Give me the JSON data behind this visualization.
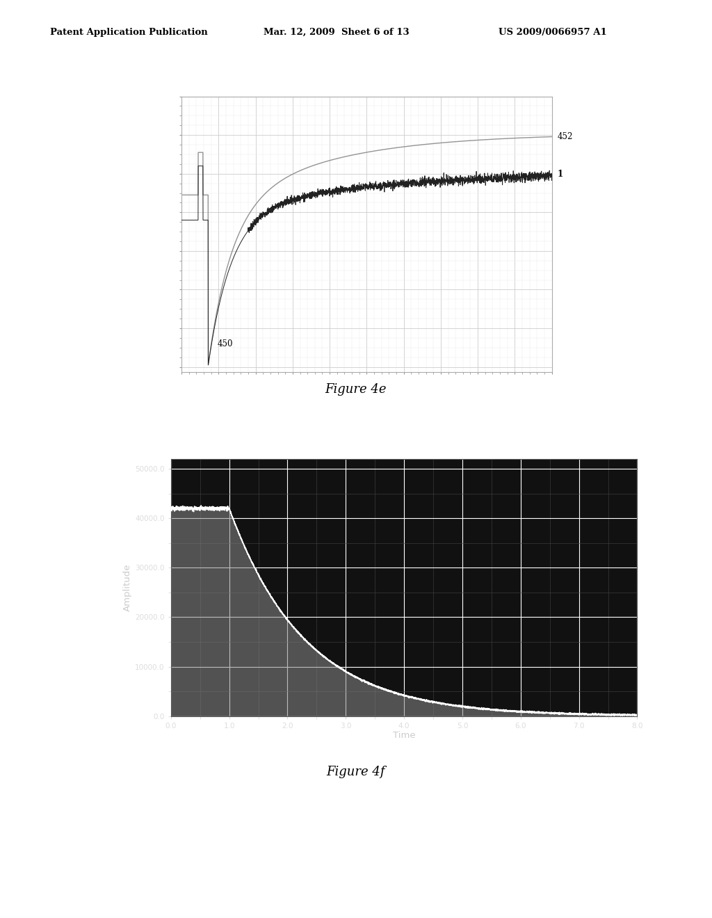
{
  "header_left": "Patent Application Publication",
  "header_mid": "Mar. 12, 2009  Sheet 6 of 13",
  "header_right": "US 2009/0066957 A1",
  "fig4e_caption": "Figure 4e",
  "fig4f_caption": "Figure 4f",
  "fig4f_ylabel": "Amplitude",
  "fig4f_xlabel": "Time",
  "fig4f_ytick_vals": [
    0,
    10000,
    20000,
    30000,
    40000,
    50000
  ],
  "fig4f_ytick_labels": [
    "0.0",
    "10000.0",
    "20000.0",
    "30000.0",
    "40000.0",
    "50000.0"
  ],
  "fig4f_xtick_vals": [
    0,
    1,
    2,
    3,
    4,
    5,
    6,
    7,
    8
  ],
  "fig4f_xtick_labels": [
    "0.0",
    "1.0",
    "2.0",
    "3.0",
    "4.0",
    "5.0",
    "6.0",
    "7.0",
    "8.0"
  ],
  "fig4f_outer_bg": "#aaaaaa",
  "fig4f_plot_bg": "#111111",
  "fig4f_grid_major_color": "#ffffff",
  "fig4f_grid_minor_color": "#555555",
  "fig4f_line_color": "#ffffff",
  "fig4f_fill_color": "#888888",
  "fig4e_bg": "#ffffff",
  "fig4e_grid_major_color": "#cccccc",
  "fig4e_grid_minor_color": "#e8e8e8",
  "fig4e_curve452_color": "#888888",
  "fig4e_curve1_color": "#222222",
  "label_452": "452",
  "label_1": "1",
  "label_450": "450"
}
